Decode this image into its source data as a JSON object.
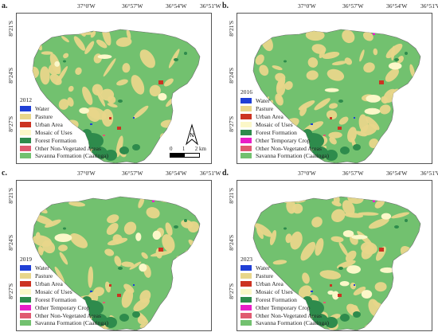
{
  "colors": {
    "water": "#1f3fd6",
    "pasture": "#e8d68a",
    "urban": "#cc3322",
    "mosaic": "#fbf7c8",
    "forest": "#2e8b4c",
    "temp_crop": "#e81ec8",
    "non_veg": "#e05a70",
    "savanna": "#72c16f"
  },
  "axes": {
    "lon_ticks": [
      "37°0'W",
      "36°57'W",
      "36°54'W",
      "36°51'W"
    ],
    "lat_ticks": [
      "8°21'S",
      "8°24'S",
      "8°27'S"
    ]
  },
  "legend_labels": {
    "water": "Water",
    "pasture": "Pasture",
    "urban": "Urban Area",
    "mosaic": "Mosaic of Uses",
    "forest": "Forest Formation",
    "temp_crop": "Other Temporary Crop",
    "non_veg": "Other Non-Vegetated Areas",
    "savanna": "Savanna Formation (Caatinga)"
  },
  "north": {
    "label": "N"
  },
  "scale_bar": {
    "ticks": [
      "0",
      "1",
      "2 km"
    ]
  },
  "panels": [
    {
      "label": "a.",
      "year": "2012",
      "legend": [
        "water",
        "pasture",
        "urban",
        "mosaic",
        "forest",
        "non_veg",
        "savanna"
      ]
    },
    {
      "label": "b.",
      "year": "2016",
      "legend": [
        "water",
        "pasture",
        "urban",
        "mosaic",
        "forest",
        "temp_crop",
        "non_veg",
        "savanna"
      ]
    },
    {
      "label": "c.",
      "year": "2019",
      "legend": [
        "water",
        "pasture",
        "urban",
        "mosaic",
        "forest",
        "temp_crop",
        "non_veg",
        "savanna"
      ]
    },
    {
      "label": "d.",
      "year": "2023",
      "legend": [
        "water",
        "pasture",
        "urban",
        "mosaic",
        "forest",
        "temp_crop",
        "non_veg",
        "savanna"
      ]
    }
  ]
}
